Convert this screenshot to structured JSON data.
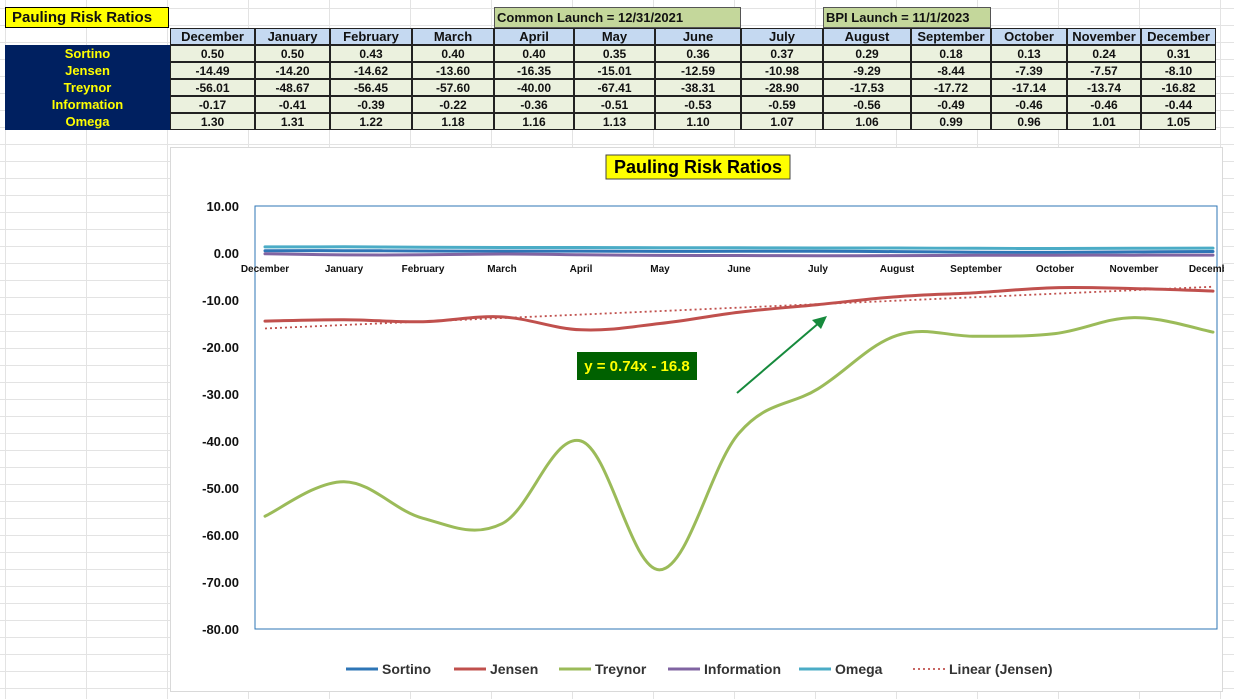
{
  "sheet": {
    "title": "Pauling Risk Ratios",
    "launch_common": "Common Launch = 12/31/2021",
    "launch_bpi": "BPI Launch = 11/1/2023",
    "months": [
      "December",
      "January",
      "February",
      "March",
      "April",
      "May",
      "June",
      "July",
      "August",
      "September",
      "October",
      "November",
      "December"
    ],
    "rows": [
      {
        "label": "Sortino",
        "values": [
          "0.50",
          "0.50",
          "0.43",
          "0.40",
          "0.40",
          "0.35",
          "0.36",
          "0.37",
          "0.29",
          "0.18",
          "0.13",
          "0.24",
          "0.31"
        ]
      },
      {
        "label": "Jensen",
        "values": [
          "-14.49",
          "-14.20",
          "-14.62",
          "-13.60",
          "-16.35",
          "-15.01",
          "-12.59",
          "-10.98",
          "-9.29",
          "-8.44",
          "-7.39",
          "-7.57",
          "-8.10"
        ]
      },
      {
        "label": "Treynor",
        "values": [
          "-56.01",
          "-48.67",
          "-56.45",
          "-57.60",
          "-40.00",
          "-67.41",
          "-38.31",
          "-28.90",
          "-17.53",
          "-17.72",
          "-17.14",
          "-13.74",
          "-16.82"
        ]
      },
      {
        "label": "Information",
        "values": [
          "-0.17",
          "-0.41",
          "-0.39",
          "-0.22",
          "-0.36",
          "-0.51",
          "-0.53",
          "-0.59",
          "-0.56",
          "-0.49",
          "-0.46",
          "-0.46",
          "-0.44"
        ]
      },
      {
        "label": "Omega",
        "values": [
          "1.30",
          "1.31",
          "1.22",
          "1.18",
          "1.16",
          "1.13",
          "1.10",
          "1.07",
          "1.06",
          "0.99",
          "0.96",
          "1.01",
          "1.05"
        ]
      }
    ]
  },
  "chart_data": {
    "type": "line",
    "title": "Pauling Risk Ratios",
    "title_bg": "#ffff00",
    "categories": [
      "December",
      "January",
      "February",
      "March",
      "April",
      "May",
      "June",
      "July",
      "August",
      "September",
      "October",
      "November",
      "December"
    ],
    "series": [
      {
        "name": "Sortino",
        "color": "#2e75b6",
        "values": [
          0.5,
          0.5,
          0.43,
          0.4,
          0.4,
          0.35,
          0.36,
          0.37,
          0.29,
          0.18,
          0.13,
          0.24,
          0.31
        ]
      },
      {
        "name": "Jensen",
        "color": "#c0504d",
        "values": [
          -14.49,
          -14.2,
          -14.62,
          -13.6,
          -16.35,
          -15.01,
          -12.59,
          -10.98,
          -9.29,
          -8.44,
          -7.39,
          -7.57,
          -8.1
        ]
      },
      {
        "name": "Treynor",
        "color": "#9bbb59",
        "values": [
          -56.01,
          -48.67,
          -56.45,
          -57.6,
          -40.0,
          -67.41,
          -38.31,
          -28.9,
          -17.53,
          -17.72,
          -17.14,
          -13.74,
          -16.82
        ]
      },
      {
        "name": "Information",
        "color": "#8064a2",
        "values": [
          -0.17,
          -0.41,
          -0.39,
          -0.22,
          -0.36,
          -0.51,
          -0.53,
          -0.59,
          -0.56,
          -0.49,
          -0.46,
          -0.46,
          -0.44
        ]
      },
      {
        "name": "Omega",
        "color": "#4bacc6",
        "values": [
          1.3,
          1.31,
          1.22,
          1.18,
          1.16,
          1.13,
          1.1,
          1.07,
          1.06,
          0.99,
          0.96,
          1.01,
          1.05
        ]
      }
    ],
    "trendline": {
      "name": "Linear (Jensen)",
      "color": "#c0504d",
      "slope": 0.74,
      "intercept": -16.8,
      "equation": "y = 0.74x - 16.8",
      "label_bg": "#006100",
      "label_color": "#ffff00",
      "arrow_color": "#168a3c"
    },
    "yticks": [
      "10.00",
      "0.00",
      "-10.00",
      "-20.00",
      "-30.00",
      "-40.00",
      "-50.00",
      "-60.00",
      "-70.00",
      "-80.00"
    ],
    "ylim": [
      -80,
      10
    ],
    "grid": false,
    "legend": "bottom"
  }
}
